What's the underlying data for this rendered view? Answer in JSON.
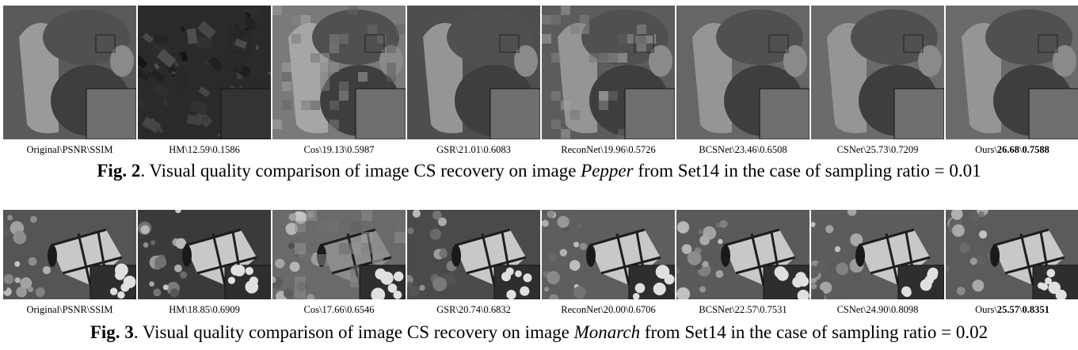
{
  "figures": [
    {
      "image": "pepper",
      "panels": [
        {
          "method": "Original",
          "psnr": "PSNR",
          "ssim": "SSIM",
          "best": false
        },
        {
          "method": "HM",
          "psnr": "12.59",
          "ssim": "0.1586",
          "best": false
        },
        {
          "method": "Cos",
          "psnr": "19.13",
          "ssim": "0.5987",
          "best": false
        },
        {
          "method": "GSR",
          "psnr": "21.01",
          "ssim": "0.6083",
          "best": false
        },
        {
          "method": "ReconNet",
          "psnr": "19.96",
          "ssim": "0.5726",
          "best": false
        },
        {
          "method": "BCSNet",
          "psnr": "23.46",
          "ssim": "0.6508",
          "best": false
        },
        {
          "method": "CSNet",
          "psnr": "25.73",
          "ssim": "0.7209",
          "best": false
        },
        {
          "method": "Ours",
          "psnr": "26.68",
          "ssim": "0.7588",
          "best": true
        }
      ],
      "caption": {
        "fig_label": "Fig. 2",
        "text_before": ". Visual quality comparison of image CS recovery on image ",
        "image_name": "Pepper",
        "text_after": " from Set14 in the case of sampling ratio = 0.01"
      }
    },
    {
      "image": "monarch",
      "panels": [
        {
          "method": "Original",
          "psnr": "PSNR",
          "ssim": "SSIM",
          "best": false
        },
        {
          "method": "HM",
          "psnr": "18.85",
          "ssim": "0.6909",
          "best": false
        },
        {
          "method": "Cos",
          "psnr": "17.66",
          "ssim": "0.6546",
          "best": false
        },
        {
          "method": "GSR",
          "psnr": "20.74",
          "ssim": "0.6832",
          "best": false
        },
        {
          "method": "ReconNet",
          "psnr": "20.00",
          "ssim": "0.6706",
          "best": false
        },
        {
          "method": "BCSNet",
          "psnr": "22.57",
          "ssim": "0.7531",
          "best": false
        },
        {
          "method": "CSNet",
          "psnr": "24.90",
          "ssim": "0.8098",
          "best": false
        },
        {
          "method": "Ours",
          "psnr": "25.57",
          "ssim": "0.8351",
          "best": true
        }
      ],
      "caption": {
        "fig_label": "Fig. 3",
        "text_before": ". Visual quality comparison of image CS recovery on image ",
        "image_name": "Monarch",
        "text_after": " from Set14 in the case of sampling ratio = 0.02"
      }
    }
  ]
}
